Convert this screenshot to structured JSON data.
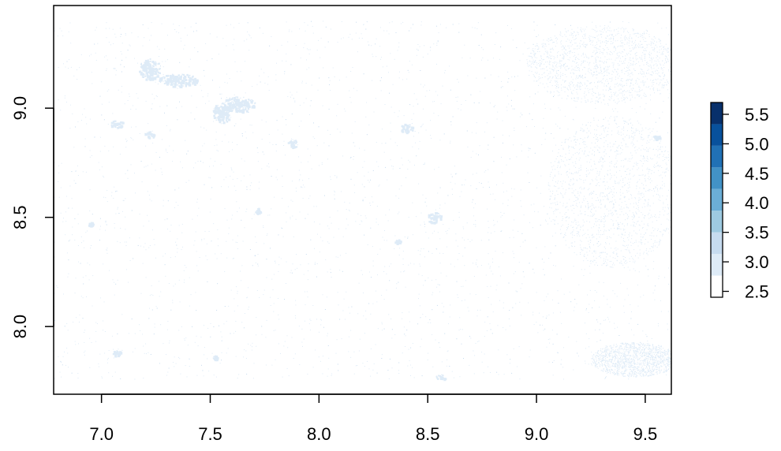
{
  "map": {
    "x_axis": {
      "range": [
        6.78,
        9.62
      ],
      "ticks": [
        {
          "value": 7.0,
          "label": "7.0"
        },
        {
          "value": 7.5,
          "label": "7.5"
        },
        {
          "value": 8.0,
          "label": "8.0"
        },
        {
          "value": 8.5,
          "label": "8.5"
        },
        {
          "value": 9.0,
          "label": "9.0"
        },
        {
          "value": 9.5,
          "label": "9.5"
        }
      ]
    },
    "y_axis": {
      "range": [
        7.69,
        9.47
      ],
      "ticks": [
        {
          "value": 8.0,
          "label": "8.0"
        },
        {
          "value": 8.5,
          "label": "8.5"
        },
        {
          "value": 9.0,
          "label": "9.0"
        }
      ]
    },
    "raster_extent": {
      "x": [
        6.78,
        9.62
      ],
      "y": [
        7.76,
        9.4
      ]
    },
    "background_value": 2.5,
    "settlements": [
      {
        "x": 7.22,
        "y": 9.18,
        "rx": 0.05,
        "ry": 0.05,
        "value": 3.1
      },
      {
        "x": 7.35,
        "y": 9.13,
        "rx": 0.09,
        "ry": 0.03,
        "value": 3.0
      },
      {
        "x": 7.63,
        "y": 9.02,
        "rx": 0.08,
        "ry": 0.035,
        "value": 3.1
      },
      {
        "x": 7.55,
        "y": 8.98,
        "rx": 0.04,
        "ry": 0.05,
        "value": 2.9
      },
      {
        "x": 7.07,
        "y": 8.93,
        "rx": 0.03,
        "ry": 0.02,
        "value": 3.0
      },
      {
        "x": 7.22,
        "y": 8.88,
        "rx": 0.025,
        "ry": 0.015,
        "value": 2.9
      },
      {
        "x": 7.88,
        "y": 8.84,
        "rx": 0.025,
        "ry": 0.02,
        "value": 3.0
      },
      {
        "x": 8.4,
        "y": 8.91,
        "rx": 0.03,
        "ry": 0.02,
        "value": 3.0
      },
      {
        "x": 8.53,
        "y": 8.5,
        "rx": 0.035,
        "ry": 0.025,
        "value": 3.1
      },
      {
        "x": 7.72,
        "y": 8.53,
        "rx": 0.015,
        "ry": 0.015,
        "value": 2.9
      },
      {
        "x": 8.36,
        "y": 8.39,
        "rx": 0.015,
        "ry": 0.01,
        "value": 2.9
      },
      {
        "x": 7.07,
        "y": 7.88,
        "rx": 0.02,
        "ry": 0.012,
        "value": 2.9
      },
      {
        "x": 8.56,
        "y": 7.77,
        "rx": 0.025,
        "ry": 0.012,
        "value": 2.9
      },
      {
        "x": 7.52,
        "y": 7.86,
        "rx": 0.012,
        "ry": 0.01,
        "value": 2.9
      },
      {
        "x": 6.95,
        "y": 8.47,
        "rx": 0.012,
        "ry": 0.01,
        "value": 2.9
      },
      {
        "x": 9.55,
        "y": 8.87,
        "rx": 0.015,
        "ry": 0.01,
        "value": 2.9
      }
    ],
    "dense_areas": [
      {
        "x": 9.35,
        "y": 8.62,
        "rx": 0.3,
        "ry": 0.35,
        "value": 2.8
      },
      {
        "x": 9.45,
        "y": 7.85,
        "rx": 0.2,
        "ry": 0.08,
        "value": 2.8
      },
      {
        "x": 9.3,
        "y": 9.2,
        "rx": 0.35,
        "ry": 0.18,
        "value": 2.7
      }
    ]
  },
  "legend": {
    "colors": [
      "#FFFFFF",
      "#DEEBF7",
      "#C6DBEF",
      "#9ECAE1",
      "#6BAED6",
      "#4292C6",
      "#2171B5",
      "#08519C",
      "#08306B"
    ],
    "range": [
      2.4,
      5.7
    ],
    "ticks": [
      {
        "value": 2.5,
        "label": "2.5"
      },
      {
        "value": 3.0,
        "label": "3.0"
      },
      {
        "value": 3.5,
        "label": "3.5"
      },
      {
        "value": 4.0,
        "label": "4.0"
      },
      {
        "value": 4.5,
        "label": "4.5"
      },
      {
        "value": 5.0,
        "label": "5.0"
      },
      {
        "value": 5.5,
        "label": "5.5"
      }
    ]
  }
}
